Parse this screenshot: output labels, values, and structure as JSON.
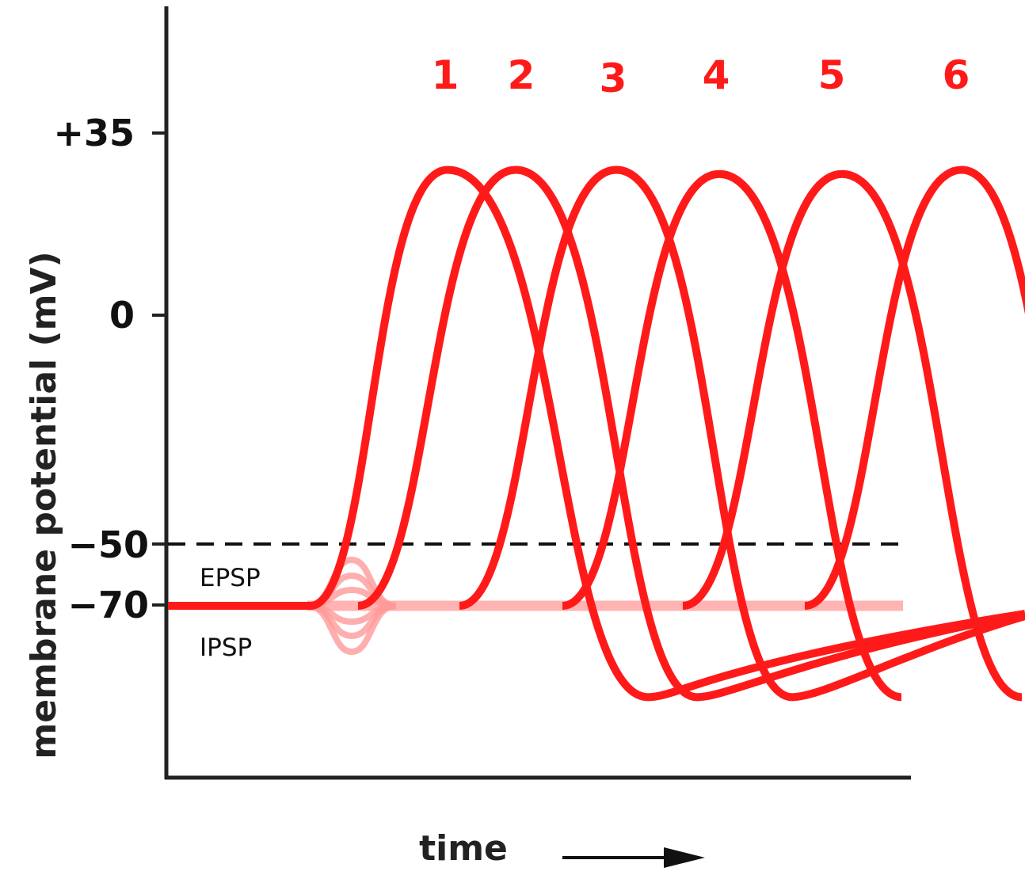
{
  "chart_data": {
    "type": "line",
    "title": "",
    "xlabel": "time",
    "ylabel": "membrane potential (mV)",
    "y_ticks": [
      "+35",
      "0",
      "−50",
      "−70"
    ],
    "y_tick_values": [
      35,
      0,
      -50,
      -70
    ],
    "ylim": [
      -100,
      45
    ],
    "threshold_mV": -50,
    "resting_mV": -70,
    "psp_labels": {
      "epsp": "EPSP",
      "ipsp": "IPSP"
    },
    "colors": {
      "spike": "#ff1a1a",
      "psp": "#ff9a9a",
      "axis": "#222222",
      "threshold": "#111111"
    },
    "spikes": [
      {
        "name": "1",
        "peak_mV": 35,
        "trough_mV": -92
      },
      {
        "name": "2",
        "peak_mV": 35,
        "trough_mV": -92
      },
      {
        "name": "3",
        "peak_mV": 35,
        "trough_mV": -92
      },
      {
        "name": "4",
        "peak_mV": 34,
        "trough_mV": -92
      },
      {
        "name": "5",
        "peak_mV": 34,
        "trough_mV": -92
      },
      {
        "name": "6",
        "peak_mV": 35,
        "trough_mV": -92
      }
    ]
  }
}
